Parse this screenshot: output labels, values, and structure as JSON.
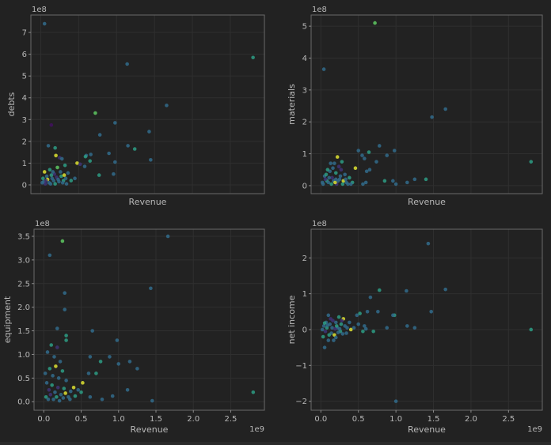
{
  "chart_data": [
    {
      "type": "scatter",
      "xlabel": "Revenue",
      "ylabel": "debts",
      "y_offset_label": "1e8",
      "x_offset_label": "",
      "show_x_ticks": false,
      "xlim": [
        -0.13,
        2.95
      ],
      "ylim": [
        -0.4,
        7.8
      ],
      "yticks": [
        0,
        1,
        2,
        3,
        4,
        5,
        6,
        7
      ],
      "xticks": [
        0,
        0.5,
        1.0,
        1.5,
        2.0,
        2.5
      ],
      "grid": true,
      "points": [
        [
          0.05,
          7.4,
          0.35
        ],
        [
          1.14,
          5.55,
          0.35
        ],
        [
          2.8,
          5.85,
          0.55
        ],
        [
          1.66,
          3.65,
          0.35
        ],
        [
          0.72,
          3.3,
          0.75
        ],
        [
          0.98,
          2.85,
          0.35
        ],
        [
          0.14,
          2.75,
          0.05
        ],
        [
          0.78,
          2.3,
          0.35
        ],
        [
          1.43,
          2.45,
          0.35
        ],
        [
          1.15,
          1.8,
          0.35
        ],
        [
          1.24,
          1.65,
          0.55
        ],
        [
          1.45,
          1.15,
          0.35
        ],
        [
          0.9,
          1.45,
          0.35
        ],
        [
          0.98,
          1.05,
          0.35
        ],
        [
          0.96,
          0.5,
          0.35
        ],
        [
          0.77,
          0.45,
          0.55
        ],
        [
          0.6,
          1.35,
          0.35
        ],
        [
          0.65,
          1.1,
          0.55
        ],
        [
          0.66,
          1.4,
          0.35
        ],
        [
          0.48,
          1.0,
          0.95
        ],
        [
          0.52,
          0.95,
          0.15
        ],
        [
          0.58,
          0.85,
          0.35
        ],
        [
          0.59,
          1.3,
          0.55
        ],
        [
          0.2,
          1.35,
          0.95
        ],
        [
          0.1,
          1.8,
          0.35
        ],
        [
          0.19,
          1.7,
          0.55
        ],
        [
          0.25,
          1.25,
          0.15
        ],
        [
          0.28,
          1.2,
          0.35
        ],
        [
          0.32,
          0.9,
          0.55
        ],
        [
          0.36,
          0.55,
          0.35
        ],
        [
          0.05,
          0.6,
          0.95
        ],
        [
          0.08,
          0.4,
          0.35
        ],
        [
          0.12,
          0.7,
          0.55
        ],
        [
          0.15,
          0.3,
          0.35
        ],
        [
          0.18,
          0.5,
          0.15
        ],
        [
          0.22,
          0.8,
          0.75
        ],
        [
          0.26,
          0.6,
          0.35
        ],
        [
          0.3,
          0.2,
          0.55
        ],
        [
          0.04,
          0.15,
          0.35
        ],
        [
          0.06,
          0.05,
          0.15
        ],
        [
          0.09,
          0.25,
          0.95
        ],
        [
          0.11,
          0.1,
          0.35
        ],
        [
          0.14,
          0.45,
          0.55
        ],
        [
          0.17,
          0.2,
          0.35
        ],
        [
          0.21,
          0.35,
          0.15
        ],
        [
          0.24,
          0.15,
          0.35
        ],
        [
          0.27,
          0.4,
          0.55
        ],
        [
          0.33,
          0.3,
          0.35
        ],
        [
          0.02,
          0.1,
          0.35
        ],
        [
          0.03,
          0.3,
          0.55
        ],
        [
          0.07,
          0.2,
          0.15
        ],
        [
          0.13,
          0.05,
          0.35
        ],
        [
          0.16,
          0.6,
          0.35
        ],
        [
          0.19,
          0.05,
          0.55
        ],
        [
          0.23,
          0.25,
          0.35
        ],
        [
          0.29,
          0.1,
          0.35
        ],
        [
          0.31,
          0.45,
          0.95
        ],
        [
          0.34,
          0.05,
          0.35
        ],
        [
          0.4,
          0.2,
          0.55
        ],
        [
          0.45,
          0.3,
          0.35
        ]
      ]
    },
    {
      "type": "scatter",
      "xlabel": "Revenue",
      "ylabel": "materials",
      "y_offset_label": "1e8",
      "x_offset_label": "",
      "show_x_ticks": false,
      "xlim": [
        -0.13,
        2.95
      ],
      "ylim": [
        -0.25,
        5.35
      ],
      "yticks": [
        0,
        1,
        2,
        3,
        4,
        5
      ],
      "xticks": [
        0,
        0.5,
        1.0,
        1.5,
        2.0,
        2.5
      ],
      "grid": true,
      "points": [
        [
          0.72,
          5.1,
          0.75
        ],
        [
          0.04,
          3.65,
          0.35
        ],
        [
          1.66,
          2.4,
          0.35
        ],
        [
          1.48,
          2.15,
          0.35
        ],
        [
          0.78,
          1.25,
          0.35
        ],
        [
          0.64,
          1.05,
          0.55
        ],
        [
          0.5,
          1.1,
          0.35
        ],
        [
          0.55,
          0.95,
          0.35
        ],
        [
          0.58,
          0.85,
          0.35
        ],
        [
          0.74,
          0.75,
          0.35
        ],
        [
          0.98,
          1.1,
          0.35
        ],
        [
          0.88,
          0.95,
          0.35
        ],
        [
          0.65,
          0.5,
          0.35
        ],
        [
          0.61,
          0.45,
          0.35
        ],
        [
          0.46,
          0.55,
          0.95
        ],
        [
          0.22,
          0.9,
          0.95
        ],
        [
          0.28,
          0.75,
          0.55
        ],
        [
          0.18,
          0.7,
          0.35
        ],
        [
          0.24,
          0.6,
          0.15
        ],
        [
          2.8,
          0.75,
          0.55
        ],
        [
          0.85,
          0.15,
          0.55
        ],
        [
          0.96,
          0.15,
          0.35
        ],
        [
          1.15,
          0.1,
          0.35
        ],
        [
          1.25,
          0.2,
          0.35
        ],
        [
          1.4,
          0.2,
          0.55
        ],
        [
          1.0,
          0.05,
          0.35
        ],
        [
          0.05,
          0.3,
          0.35
        ],
        [
          0.08,
          0.15,
          0.55
        ],
        [
          0.12,
          0.45,
          0.35
        ],
        [
          0.15,
          0.25,
          0.15
        ],
        [
          0.2,
          0.4,
          0.55
        ],
        [
          0.26,
          0.3,
          0.35
        ],
        [
          0.3,
          0.15,
          0.95
        ],
        [
          0.34,
          0.1,
          0.35
        ],
        [
          0.38,
          0.25,
          0.55
        ],
        [
          0.03,
          0.05,
          0.35
        ],
        [
          0.06,
          0.2,
          0.15
        ],
        [
          0.1,
          0.1,
          0.35
        ],
        [
          0.14,
          0.05,
          0.55
        ],
        [
          0.17,
          0.15,
          0.35
        ],
        [
          0.21,
          0.05,
          0.15
        ],
        [
          0.25,
          0.2,
          0.35
        ],
        [
          0.29,
          0.05,
          0.55
        ],
        [
          0.32,
          0.35,
          0.35
        ],
        [
          0.02,
          0.1,
          0.35
        ],
        [
          0.07,
          0.35,
          0.55
        ],
        [
          0.11,
          0.25,
          0.35
        ],
        [
          0.16,
          0.55,
          0.35
        ],
        [
          0.19,
          0.1,
          0.95
        ],
        [
          0.23,
          0.15,
          0.35
        ],
        [
          0.27,
          0.5,
          0.15
        ],
        [
          0.36,
          0.05,
          0.35
        ],
        [
          0.42,
          0.1,
          0.55
        ],
        [
          0.56,
          0.05,
          0.35
        ],
        [
          0.6,
          0.1,
          0.35
        ],
        [
          0.13,
          0.7,
          0.35
        ],
        [
          0.09,
          0.5,
          0.55
        ],
        [
          0.2,
          0.2,
          0.35
        ],
        [
          0.33,
          0.2,
          0.35
        ],
        [
          0.4,
          0.05,
          0.35
        ]
      ]
    },
    {
      "type": "scatter",
      "xlabel": "Revenue",
      "ylabel": "equipment",
      "y_offset_label": "1e8",
      "x_offset_label": "1e9",
      "show_x_ticks": true,
      "xlim": [
        -0.13,
        2.95
      ],
      "ylim": [
        -0.18,
        3.65
      ],
      "yticks": [
        0,
        0.5,
        1.0,
        1.5,
        2.0,
        2.5,
        3.0,
        3.5
      ],
      "ytick_labels": [
        "0.0",
        "0.5",
        "1.0",
        "1.5",
        "2.0",
        "2.5",
        "3.0",
        "3.5"
      ],
      "xticks": [
        0,
        0.5,
        1.0,
        1.5,
        2.0,
        2.5
      ],
      "xtick_labels": [
        "0.0",
        "0.5",
        "1.0",
        "1.5",
        "2.0",
        "2.5"
      ],
      "grid": true,
      "points": [
        [
          0.25,
          3.4,
          0.75
        ],
        [
          1.66,
          3.5,
          0.35
        ],
        [
          0.08,
          3.1,
          0.35
        ],
        [
          0.28,
          2.3,
          0.35
        ],
        [
          1.43,
          2.4,
          0.35
        ],
        [
          0.28,
          1.95,
          0.35
        ],
        [
          0.18,
          1.55,
          0.35
        ],
        [
          0.3,
          1.4,
          0.55
        ],
        [
          0.3,
          1.3,
          0.55
        ],
        [
          0.65,
          1.5,
          0.35
        ],
        [
          0.98,
          1.3,
          0.35
        ],
        [
          0.88,
          0.95,
          0.35
        ],
        [
          1.15,
          0.85,
          0.35
        ],
        [
          1.0,
          0.8,
          0.35
        ],
        [
          1.25,
          0.7,
          0.35
        ],
        [
          0.62,
          0.95,
          0.35
        ],
        [
          0.76,
          0.85,
          0.55
        ],
        [
          0.7,
          0.6,
          0.55
        ],
        [
          0.6,
          0.6,
          0.35
        ],
        [
          0.52,
          0.4,
          0.95
        ],
        [
          0.4,
          0.3,
          0.95
        ],
        [
          0.46,
          0.25,
          0.35
        ],
        [
          0.5,
          0.2,
          0.55
        ],
        [
          0.62,
          0.1,
          0.35
        ],
        [
          0.78,
          0.05,
          0.35
        ],
        [
          0.92,
          0.12,
          0.35
        ],
        [
          1.12,
          0.25,
          0.35
        ],
        [
          1.45,
          0.02,
          0.35
        ],
        [
          2.8,
          0.2,
          0.55
        ],
        [
          0.05,
          1.05,
          0.35
        ],
        [
          0.1,
          1.2,
          0.55
        ],
        [
          0.14,
          0.95,
          0.35
        ],
        [
          0.18,
          1.15,
          0.15
        ],
        [
          0.22,
          0.85,
          0.35
        ],
        [
          0.08,
          0.7,
          0.55
        ],
        [
          0.12,
          0.55,
          0.35
        ],
        [
          0.16,
          0.75,
          0.95
        ],
        [
          0.2,
          0.5,
          0.35
        ],
        [
          0.25,
          0.65,
          0.55
        ],
        [
          0.3,
          0.45,
          0.35
        ],
        [
          0.04,
          0.4,
          0.35
        ],
        [
          0.07,
          0.25,
          0.15
        ],
        [
          0.11,
          0.35,
          0.55
        ],
        [
          0.15,
          0.2,
          0.35
        ],
        [
          0.19,
          0.3,
          0.15
        ],
        [
          0.23,
          0.15,
          0.35
        ],
        [
          0.27,
          0.28,
          0.55
        ],
        [
          0.33,
          0.1,
          0.35
        ],
        [
          0.36,
          0.22,
          0.35
        ],
        [
          0.03,
          0.1,
          0.55
        ],
        [
          0.06,
          0.05,
          0.35
        ],
        [
          0.09,
          0.15,
          0.15
        ],
        [
          0.13,
          0.05,
          0.35
        ],
        [
          0.17,
          0.1,
          0.55
        ],
        [
          0.21,
          0.02,
          0.35
        ],
        [
          0.26,
          0.08,
          0.35
        ],
        [
          0.29,
          0.18,
          0.95
        ],
        [
          0.35,
          0.05,
          0.35
        ],
        [
          0.42,
          0.12,
          0.55
        ],
        [
          0.02,
          0.6,
          0.35
        ]
      ]
    },
    {
      "type": "scatter",
      "xlabel": "Revenue",
      "ylabel": "net income",
      "y_offset_label": "1e8",
      "x_offset_label": "1e9",
      "show_x_ticks": true,
      "xlim": [
        -0.13,
        2.95
      ],
      "ylim": [
        -2.25,
        2.8
      ],
      "yticks": [
        -2,
        -1,
        0,
        1,
        2
      ],
      "ytick_labels": [
        "−2",
        "−1",
        "0",
        "1",
        "2"
      ],
      "xticks": [
        0,
        0.5,
        1.0,
        1.5,
        2.0,
        2.5
      ],
      "xtick_labels": [
        "0.0",
        "0.5",
        "1.0",
        "1.5",
        "2.0",
        "2.5"
      ],
      "grid": true,
      "points": [
        [
          1.43,
          2.4,
          0.35
        ],
        [
          1.66,
          1.12,
          0.35
        ],
        [
          1.14,
          1.08,
          0.35
        ],
        [
          0.78,
          1.1,
          0.55
        ],
        [
          0.66,
          0.9,
          0.35
        ],
        [
          1.47,
          0.5,
          0.35
        ],
        [
          0.98,
          0.4,
          0.55
        ],
        [
          0.96,
          0.4,
          0.35
        ],
        [
          0.76,
          0.5,
          0.35
        ],
        [
          0.62,
          0.5,
          0.35
        ],
        [
          0.52,
          0.45,
          0.55
        ],
        [
          0.48,
          0.4,
          0.35
        ],
        [
          1.0,
          -2.0,
          0.35
        ],
        [
          0.05,
          -0.5,
          0.35
        ],
        [
          0.1,
          -0.3,
          0.35
        ],
        [
          1.25,
          0.05,
          0.35
        ],
        [
          1.15,
          0.1,
          0.35
        ],
        [
          0.88,
          0.05,
          0.35
        ],
        [
          0.58,
          0.1,
          0.35
        ],
        [
          0.56,
          -0.05,
          0.55
        ],
        [
          2.8,
          0.0,
          0.55
        ],
        [
          0.3,
          0.3,
          0.95
        ],
        [
          0.24,
          0.35,
          0.55
        ],
        [
          0.2,
          0.2,
          0.35
        ],
        [
          0.16,
          0.25,
          0.15
        ],
        [
          0.12,
          0.15,
          0.35
        ],
        [
          0.08,
          0.05,
          0.55
        ],
        [
          0.14,
          -0.1,
          0.35
        ],
        [
          0.18,
          -0.15,
          0.95
        ],
        [
          0.22,
          0.05,
          0.35
        ],
        [
          0.26,
          -0.05,
          0.55
        ],
        [
          0.32,
          0.1,
          0.35
        ],
        [
          0.04,
          0.1,
          0.35
        ],
        [
          0.06,
          -0.05,
          0.15
        ],
        [
          0.09,
          0.12,
          0.35
        ],
        [
          0.11,
          -0.15,
          0.55
        ],
        [
          0.15,
          0.05,
          0.35
        ],
        [
          0.19,
          0.02,
          0.15
        ],
        [
          0.23,
          -0.08,
          0.35
        ],
        [
          0.27,
          0.15,
          0.55
        ],
        [
          0.35,
          0.05,
          0.35
        ],
        [
          0.02,
          0.0,
          0.35
        ],
        [
          0.03,
          -0.2,
          0.55
        ],
        [
          0.07,
          0.2,
          0.35
        ],
        [
          0.13,
          0.3,
          0.15
        ],
        [
          0.17,
          -0.3,
          0.35
        ],
        [
          0.21,
          0.1,
          0.55
        ],
        [
          0.25,
          0.02,
          0.35
        ],
        [
          0.29,
          -0.12,
          0.35
        ],
        [
          0.4,
          0.0,
          0.95
        ],
        [
          0.44,
          0.05,
          0.35
        ],
        [
          0.6,
          0.02,
          0.35
        ],
        [
          0.7,
          -0.05,
          0.55
        ],
        [
          0.34,
          -0.1,
          0.35
        ],
        [
          0.1,
          0.4,
          0.35
        ],
        [
          0.05,
          0.18,
          0.55
        ],
        [
          0.2,
          -0.22,
          0.35
        ],
        [
          0.28,
          0.25,
          0.15
        ],
        [
          0.38,
          0.2,
          0.35
        ],
        [
          0.5,
          0.15,
          0.35
        ]
      ]
    }
  ]
}
